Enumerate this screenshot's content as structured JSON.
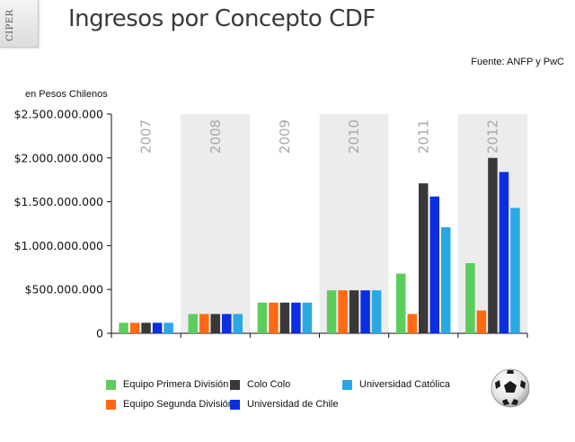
{
  "header": {
    "badge": "CIPER",
    "title": "Ingresos por Concepto CDF",
    "source": "Fuente: ANFP y PwC"
  },
  "chart_data": {
    "type": "bar",
    "title": "Ingresos por Concepto CDF",
    "ylabel": "en Pesos Chilenos",
    "xlabel": "",
    "ylim": [
      0,
      2500000000
    ],
    "yticks": [
      0,
      500000000,
      1000000000,
      1500000000,
      2000000000,
      2500000000
    ],
    "ytick_labels": [
      "0",
      "$500.000.000",
      "$1.000.000.000",
      "$1.500.000.000",
      "$2.000.000.000",
      "$2.500.000.000"
    ],
    "categories": [
      "2007",
      "2008",
      "2009",
      "2010",
      "2011",
      "2012"
    ],
    "series": [
      {
        "name": "Equipo Primera División",
        "color": "#5ccc5c",
        "values": [
          120000000,
          220000000,
          350000000,
          490000000,
          680000000,
          800000000
        ]
      },
      {
        "name": "Equipo Segunda División",
        "color": "#ff6a12",
        "values": [
          120000000,
          220000000,
          350000000,
          490000000,
          220000000,
          260000000
        ]
      },
      {
        "name": "Colo Colo",
        "color": "#383838",
        "values": [
          120000000,
          220000000,
          350000000,
          490000000,
          1710000000,
          2000000000
        ]
      },
      {
        "name": "Universidad de Chile",
        "color": "#0a2ee0",
        "values": [
          120000000,
          220000000,
          350000000,
          490000000,
          1560000000,
          1840000000
        ]
      },
      {
        "name": "Universidad Católica",
        "color": "#2aa8e6",
        "values": [
          120000000,
          220000000,
          350000000,
          490000000,
          1210000000,
          1430000000
        ]
      }
    ],
    "legend_position": "bottom",
    "background_bands": [
      "#ffffff",
      "#ececec"
    ]
  }
}
